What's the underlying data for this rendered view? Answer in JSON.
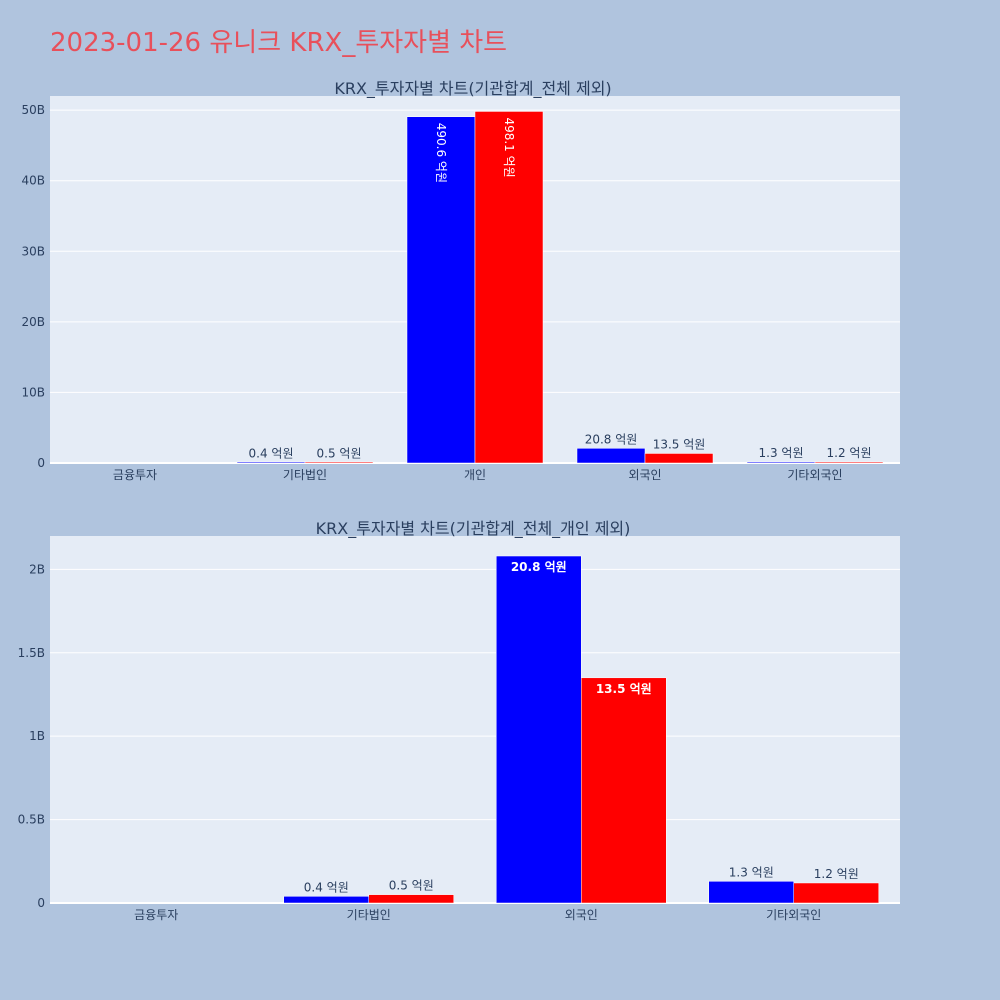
{
  "title": "2023-01-26 유니크 KRX_투자자별 차트",
  "colors": {
    "page_bg": "#b0c4de",
    "plot_bg": "#e5ecf6",
    "grid": "#ffffff",
    "title": "#e8505b",
    "text": "#2a3f5f",
    "series_a": "#0000ff",
    "series_b": "#ff0000"
  },
  "chart_data": [
    {
      "type": "bar",
      "title": "KRX_투자자별 차트(기관합계_전체 제외)",
      "categories": [
        "금융투자",
        "기타법인",
        "개인",
        "외국인",
        "기타외국인"
      ],
      "series": [
        {
          "color": "#0000ff",
          "values": [
            0,
            40000000,
            49060000000,
            2080000000,
            130000000
          ],
          "labels": [
            "",
            "0.4 억원",
            "490.6 억원",
            "20.8 억원",
            "1.3 억원"
          ]
        },
        {
          "color": "#ff0000",
          "values": [
            0,
            50000000,
            49810000000,
            1350000000,
            120000000
          ],
          "labels": [
            "",
            "0.5 억원",
            "498.1 억원",
            "13.5 억원",
            "1.2 억원"
          ]
        }
      ],
      "ylim": [
        0,
        52000000000
      ],
      "yticks": [
        0,
        10000000000,
        20000000000,
        30000000000,
        40000000000,
        50000000000
      ],
      "ytick_labels": [
        "0",
        "10B",
        "20B",
        "30B",
        "40B",
        "50B"
      ],
      "grid": true,
      "legend": "none"
    },
    {
      "type": "bar",
      "title": "KRX_투자자별 차트(기관합계_전체_개인 제외)",
      "categories": [
        "금융투자",
        "기타법인",
        "외국인",
        "기타외국인"
      ],
      "series": [
        {
          "color": "#0000ff",
          "values": [
            0,
            40000000,
            2080000000,
            130000000
          ],
          "labels": [
            "",
            "0.4 억원",
            "20.8 억원",
            "1.3 억원"
          ]
        },
        {
          "color": "#ff0000",
          "values": [
            0,
            50000000,
            1350000000,
            120000000
          ],
          "labels": [
            "",
            "0.5 억원",
            "13.5 억원",
            "1.2 억원"
          ]
        }
      ],
      "ylim": [
        0,
        2200000000
      ],
      "yticks": [
        0,
        500000000,
        1000000000,
        1500000000,
        2000000000
      ],
      "ytick_labels": [
        "0",
        "0.5B",
        "1B",
        "1.5B",
        "2B"
      ],
      "grid": true,
      "legend": "none"
    }
  ]
}
